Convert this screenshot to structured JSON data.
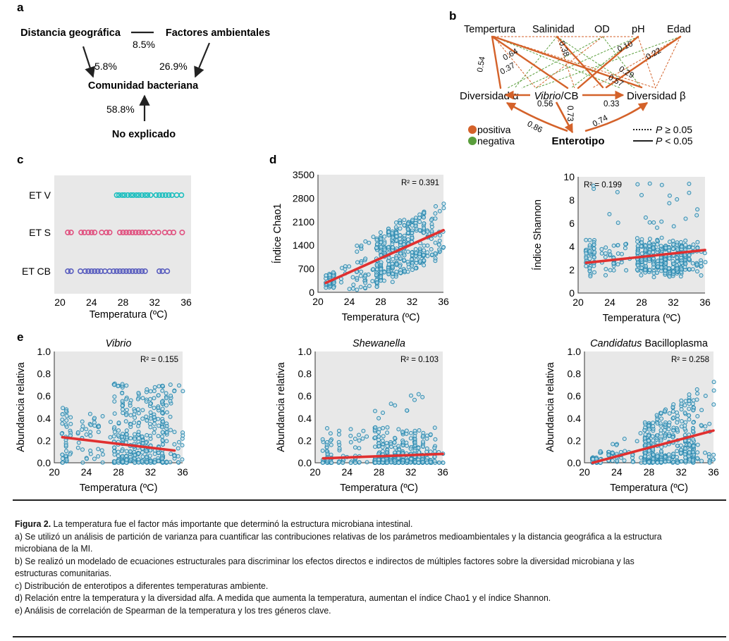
{
  "colors": {
    "point": "#2e8bb1",
    "fit": "#e03030",
    "positive": "#d4622a",
    "negative": "#5a9e3c",
    "etv": "#1ebfbf",
    "ets": "#e0507f",
    "etcb": "#5b5fbf",
    "panel_bg": "#e8e8e8"
  },
  "panel_a": {
    "letter": "a",
    "node_geo": "Distancia geográfica",
    "node_env": "Factores ambientales",
    "node_community": "Comunidad bacteriana",
    "node_unexplained": "No explicado",
    "pct_shared": "8.5%",
    "pct_geo": "5.8%",
    "pct_env": "26.9%",
    "pct_unexplained": "58.8%"
  },
  "panel_b": {
    "letter": "b",
    "top_nodes": [
      "Tempertura",
      "Salinidad",
      "OD",
      "pH",
      "Edad"
    ],
    "alpha_label": "Diversidad α",
    "beta_label": "Diversidad β",
    "vibrio_italic": "Vibrio",
    "vibrio_rest": "/CB",
    "enterotype_label": "Enterotipo",
    "path_values": [
      "0.54",
      "0.64",
      "0.37",
      "0.38",
      "0.10",
      "0.22",
      "0.29",
      "0.57",
      "0.56",
      "0.33",
      "0.73",
      "0.86",
      "0.74"
    ],
    "legend": {
      "positive": "positiva",
      "negative": "negativa",
      "p_symbol": "P",
      "dotted_rest": " ≥ 0.05",
      "solid_rest": " < 0.05"
    }
  },
  "panel_c": {
    "letter": "c",
    "chart_data": {
      "type": "scatter",
      "title": "",
      "xlabel": "Temperatura (ºC)",
      "ylabel": "",
      "xlim": [
        20,
        36
      ],
      "xticks": [
        20,
        24,
        28,
        32,
        36
      ],
      "categories": [
        "ET V",
        "ET S",
        "ET CB"
      ],
      "series": [
        {
          "name": "ET V",
          "x": [
            27.2,
            27.5,
            27.9,
            28.2,
            28.6,
            29.0,
            29.3,
            29.7,
            30.0,
            30.4,
            30.8,
            31.1,
            31.5,
            32.2,
            32.6,
            33.0,
            33.4,
            33.8,
            34.2,
            34.8,
            35.4
          ]
        },
        {
          "name": "ET S",
          "x": [
            21.0,
            21.4,
            22.7,
            23.1,
            23.6,
            24.0,
            24.4,
            25.3,
            25.9,
            26.3,
            27.6,
            28.0,
            28.4,
            28.8,
            29.2,
            29.6,
            30.0,
            30.4,
            30.8,
            31.3,
            31.9,
            32.5,
            33.3,
            33.9,
            34.4,
            35.5
          ]
        },
        {
          "name": "ET CB",
          "x": [
            21.0,
            21.4,
            22.6,
            23.2,
            23.6,
            24.0,
            24.4,
            24.8,
            25.2,
            25.7,
            26.3,
            26.8,
            27.2,
            27.6,
            28.0,
            28.4,
            28.8,
            29.2,
            29.6,
            30.0,
            30.4,
            30.8,
            32.6,
            33.0,
            33.6
          ]
        }
      ]
    }
  },
  "panel_d_letter": "d",
  "panel_e_letter": "e",
  "charts_d_e": [
    {
      "id": "d-chao1",
      "type": "scatter",
      "title": "",
      "title_italic": "",
      "xlabel": "Temperatura (ºC)",
      "ylabel": "Índice Chao1",
      "r2_label": "R² = 0.391",
      "xlim": [
        20,
        36
      ],
      "xticks": [
        20,
        24,
        28,
        32,
        36
      ],
      "ylim": [
        0,
        3500
      ],
      "yticks": [
        0,
        700,
        1400,
        2100,
        2800,
        3500
      ],
      "fit": {
        "x": [
          21,
          36
        ],
        "y": [
          280,
          1850
        ]
      }
    },
    {
      "id": "d-shannon",
      "type": "scatter",
      "title": "",
      "title_italic": "",
      "xlabel": "Temperatura (ºC)",
      "ylabel": "Índice Shannon",
      "r2_label": "R² = 0.199",
      "xlim": [
        20,
        36
      ],
      "xticks": [
        20,
        24,
        28,
        32,
        36
      ],
      "ylim": [
        0,
        10
      ],
      "yticks": [
        0,
        2,
        4,
        6,
        8,
        10
      ],
      "fit": {
        "x": [
          21,
          36
        ],
        "y": [
          2.6,
          3.7
        ]
      }
    },
    {
      "id": "e-vibrio",
      "type": "scatter",
      "title": "",
      "title_italic": "Vibrio",
      "xlabel": "Temperatura (ºC)",
      "ylabel": "Abundancia relativa",
      "r2_label": "R² = 0.155",
      "xlim": [
        20,
        36
      ],
      "xticks": [
        20,
        24,
        28,
        32,
        36
      ],
      "ylim": [
        0,
        1
      ],
      "yticks": [
        "0.0",
        "0.2",
        "0.4",
        "0.6",
        "0.8",
        "1.0"
      ],
      "fit": {
        "x": [
          21,
          35
        ],
        "y": [
          0.23,
          0.11
        ]
      }
    },
    {
      "id": "e-shewanella",
      "type": "scatter",
      "title": "",
      "title_italic": "Shewanella",
      "xlabel": "Temperatura (ºC)",
      "ylabel": "Abundancia relativa",
      "r2_label": "R² = 0.103",
      "xlim": [
        20,
        36
      ],
      "xticks": [
        20,
        24,
        28,
        32,
        36
      ],
      "ylim": [
        0,
        1
      ],
      "yticks": [
        "0.0",
        "0.2",
        "0.4",
        "0.6",
        "0.8",
        "1.0"
      ],
      "fit": {
        "x": [
          21,
          36
        ],
        "y": [
          0.04,
          0.08
        ]
      }
    },
    {
      "id": "e-candidatus",
      "type": "scatter",
      "title": " Bacilloplasma",
      "title_italic": "Candidatus",
      "xlabel": "Temperatura (ºC)",
      "ylabel": "Abundancia relativa",
      "r2_label": "R² = 0.258",
      "xlim": [
        20,
        36
      ],
      "xticks": [
        20,
        24,
        28,
        32,
        36
      ],
      "ylim": [
        0,
        1
      ],
      "yticks": [
        "0.0",
        "0.2",
        "0.4",
        "0.6",
        "0.8",
        "1.0"
      ],
      "fit": {
        "x": [
          21,
          36
        ],
        "y": [
          0.0,
          0.29
        ]
      }
    }
  ],
  "caption": {
    "title_bold": "Figura 2.",
    "title_rest": " La temperatura fue el factor más importante que determinó la estructura microbiana intestinal.",
    "lines": [
      "a) Se utilizó un análisis de partición de varianza para cuantificar las contribuciones relativas de los parámetros medioambientales y la distancia geográfica a la estructura microbiana de la MI.",
      "b) Se realizó un modelado de ecuaciones estructurales para discriminar los efectos directos e indirectos de múltiples factores sobre la diversidad microbiana y las estructuras comunitarias.",
      "c) Distribución de enterotipos a diferentes temperaturas ambiente.",
      "d) Relación entre la temperatura y la diversidad alfa. A medida que aumenta la temperatura, aumentan el índice Chao1 y el índice Shannon.",
      "e) Análisis de correlación de Spearman de la temperatura y los tres géneros clave."
    ]
  }
}
